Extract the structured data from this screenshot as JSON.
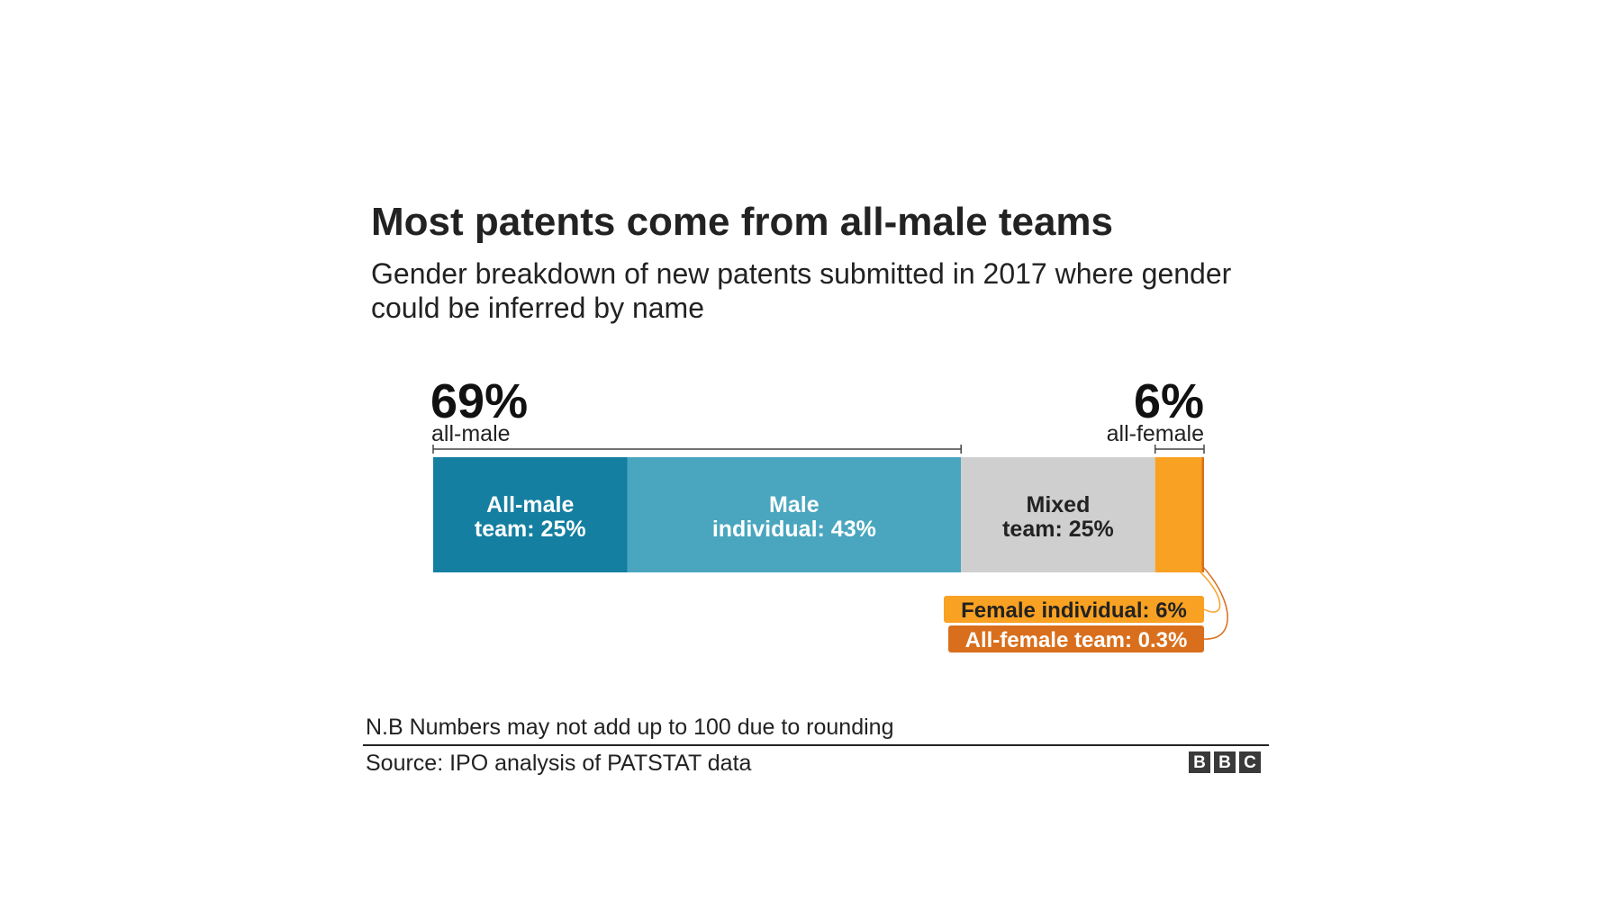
{
  "title": "Most patents come from all-male teams",
  "subtitle": "Gender breakdown of new patents submitted in 2017 where gender could be inferred by name",
  "note": "N.B Numbers may not add up to 100 due to rounding",
  "source": "Source: IPO analysis of PATSTAT data",
  "logo": [
    "B",
    "B",
    "C"
  ],
  "chart_data": {
    "type": "bar",
    "orientation": "horizontal-stacked",
    "categories": [
      "All-male team",
      "Male individual",
      "Mixed team",
      "Female individual",
      "All-female team"
    ],
    "values": [
      25,
      43,
      25,
      6,
      0.3
    ],
    "labels": [
      [
        "All-male",
        "team: 25%"
      ],
      [
        "Male",
        "individual: 43%"
      ],
      [
        "Mixed",
        "team: 25%"
      ],
      [
        "Female individual: 6%"
      ],
      [
        "All-female team: 0.3%"
      ]
    ],
    "colors": [
      "#157fa1",
      "#4aa6bf",
      "#cfcfcf",
      "#f9a122",
      "#d96f1c"
    ],
    "label_colors": [
      "#ffffff",
      "#ffffff",
      "#222222",
      "#222222",
      "#ffffff"
    ],
    "groups": [
      {
        "value": "69%",
        "label": "all-male"
      },
      {
        "value": "6%",
        "label": "all-female"
      }
    ]
  }
}
